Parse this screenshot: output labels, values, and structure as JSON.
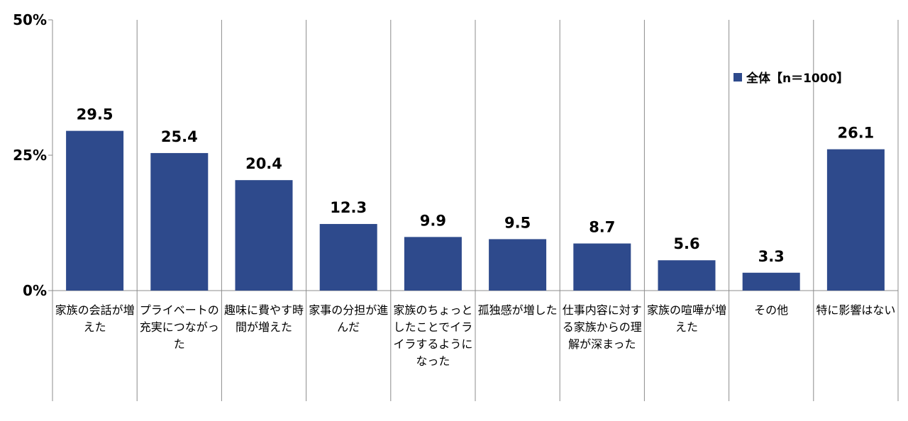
{
  "chart_data": {
    "type": "bar",
    "categories": [
      "家族の会話が増えた",
      "プライベートの充実につながった",
      "趣味に費やす時間が増えた",
      "家事の分担が進んだ",
      "家族のちょっとしたことでイライラするようになった",
      "孤独感が増した",
      "仕事内容に対する家族からの理解が深まった",
      "家族の喧嘩が増えた",
      "その他",
      "特に影響はない"
    ],
    "series": [
      {
        "name": "全体【n＝1000】",
        "values": [
          29.5,
          25.4,
          20.4,
          12.3,
          9.9,
          9.5,
          8.7,
          5.6,
          3.3,
          26.1
        ],
        "labels": [
          "29.5",
          "25.4",
          "20.4",
          "12.3",
          "9.9",
          "9.5",
          "8.7",
          "5.6",
          "3.3",
          "26.1"
        ]
      }
    ],
    "ylim": [
      0,
      50
    ],
    "y_ticks": [
      0,
      25,
      50
    ],
    "y_tick_labels": [
      "0%",
      "25%",
      "50%"
    ],
    "title": "",
    "xlabel": "",
    "ylabel": "",
    "legend_position": "top-right",
    "grid": false,
    "bar_color": "#2e4a8c"
  }
}
